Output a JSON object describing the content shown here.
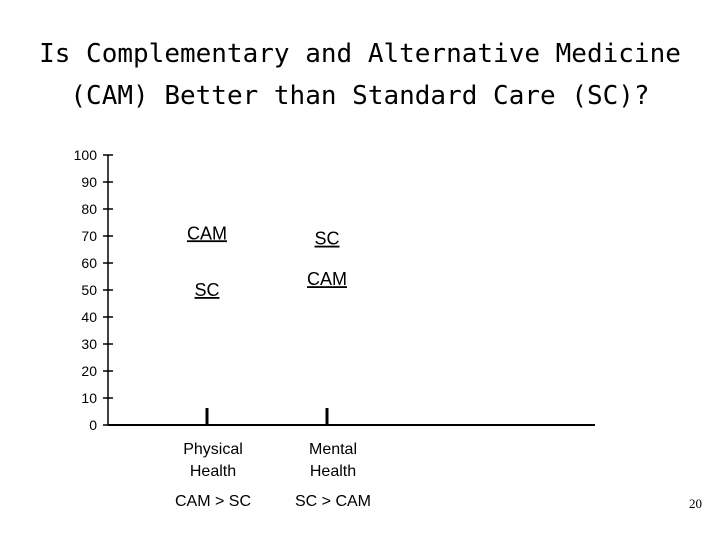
{
  "page": {
    "title_line1": "Is Complementary and Alternative Medicine",
    "title_line2": "(CAM) Better than Standard Care (SC)?",
    "page_number": "20"
  },
  "chart_data": {
    "type": "scatter",
    "title": "Is Complementary and Alternative Medicine (CAM) Better than Standard Care (SC)?",
    "ylim": [
      0,
      100
    ],
    "yticks": [
      0,
      10,
      20,
      30,
      40,
      50,
      60,
      70,
      80,
      90,
      100
    ],
    "grid": false,
    "categories": [
      {
        "name_line1": "Physical",
        "name_line2": "Health",
        "comparison": "CAM > SC"
      },
      {
        "name_line1": "Mental",
        "name_line2": "Health",
        "comparison": "SC > CAM"
      }
    ],
    "points": [
      {
        "category": 0,
        "label": "CAM",
        "y": 71
      },
      {
        "category": 0,
        "label": "SC",
        "y": 50
      },
      {
        "category": 1,
        "label": "SC",
        "y": 69
      },
      {
        "category": 1,
        "label": "CAM",
        "y": 54
      }
    ],
    "axis_color": "#000000",
    "text_color": "#000000"
  }
}
